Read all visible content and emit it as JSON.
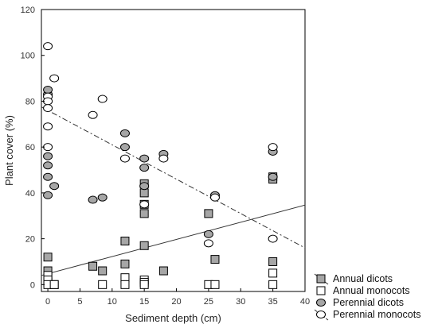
{
  "chart_data": {
    "type": "scatter",
    "xlabel": "Sediment depth (cm)",
    "ylabel": "Plant cover (%)",
    "xlim": [
      -1,
      40
    ],
    "ylim": [
      -3,
      120
    ],
    "xticks": [
      0,
      5,
      10,
      15,
      20,
      25,
      30,
      35,
      40
    ],
    "yticks": [
      0,
      20,
      40,
      60,
      80,
      100,
      120
    ],
    "grid": false,
    "legend": "bottom-right",
    "series": [
      {
        "name": "Annual dicots",
        "marker": "square",
        "fill": "#a6a6a6",
        "points": [
          [
            0,
            12
          ],
          [
            0,
            6
          ],
          [
            0,
            3
          ],
          [
            0,
            1
          ],
          [
            1,
            0
          ],
          [
            7,
            8
          ],
          [
            8.5,
            6
          ],
          [
            12,
            19
          ],
          [
            12,
            9
          ],
          [
            15,
            44
          ],
          [
            15,
            40
          ],
          [
            15,
            35
          ],
          [
            15,
            31
          ],
          [
            15,
            17
          ],
          [
            18,
            6
          ],
          [
            25,
            31
          ],
          [
            26,
            11
          ],
          [
            35,
            47
          ],
          [
            35,
            46
          ],
          [
            35,
            10
          ]
        ],
        "trend": {
          "x": [
            -1,
            40
          ],
          "y": [
            4,
            34.7
          ],
          "style": "solid"
        }
      },
      {
        "name": "Annual monocots",
        "marker": "square",
        "fill": "#ffffff",
        "points": [
          [
            0,
            4
          ],
          [
            0,
            2
          ],
          [
            0,
            0
          ],
          [
            1,
            0
          ],
          [
            8.5,
            0
          ],
          [
            12,
            3
          ],
          [
            12,
            0
          ],
          [
            15,
            2
          ],
          [
            15,
            1
          ],
          [
            15,
            0
          ],
          [
            25,
            0
          ],
          [
            26,
            0
          ],
          [
            35,
            5
          ],
          [
            35,
            0
          ]
        ]
      },
      {
        "name": "Perennial dicots",
        "marker": "circle",
        "fill": "#a6a6a6",
        "points": [
          [
            0,
            83
          ],
          [
            0,
            85
          ],
          [
            0,
            56
          ],
          [
            0,
            52
          ],
          [
            0,
            47
          ],
          [
            0,
            39
          ],
          [
            1,
            43
          ],
          [
            7,
            37
          ],
          [
            8.5,
            38
          ],
          [
            12,
            66
          ],
          [
            12,
            60
          ],
          [
            15,
            55
          ],
          [
            15,
            51
          ],
          [
            15,
            43
          ],
          [
            18,
            57
          ],
          [
            25,
            22
          ],
          [
            26,
            39
          ],
          [
            35,
            47
          ],
          [
            35,
            58
          ]
        ]
      },
      {
        "name": "Perennial monocots",
        "marker": "circle",
        "fill": "#ffffff",
        "points": [
          [
            0,
            104
          ],
          [
            0,
            82
          ],
          [
            0,
            80
          ],
          [
            0,
            77
          ],
          [
            0,
            69
          ],
          [
            0,
            60
          ],
          [
            1,
            90
          ],
          [
            7,
            74
          ],
          [
            8.5,
            81
          ],
          [
            12,
            55
          ],
          [
            15,
            35
          ],
          [
            18,
            55
          ],
          [
            25,
            18
          ],
          [
            26,
            38
          ],
          [
            35,
            60
          ],
          [
            35,
            20
          ]
        ],
        "trend": {
          "x": [
            -1,
            40
          ],
          "y": [
            77.5,
            16
          ],
          "style": "dashdot"
        }
      }
    ]
  }
}
